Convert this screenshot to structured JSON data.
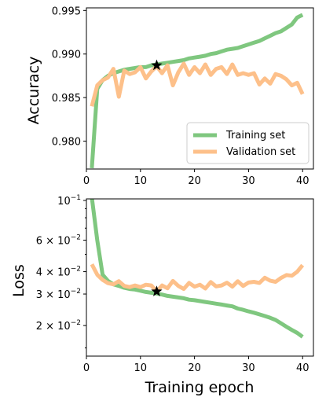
{
  "chart_data": [
    {
      "type": "line",
      "ylabel": "Accuracy",
      "xlim": [
        0,
        42
      ],
      "ylim": [
        0.9768,
        0.9953
      ],
      "y_scale": "linear",
      "xticks": [
        0,
        10,
        20,
        30,
        40
      ],
      "xtick_labels": [
        "0",
        "10",
        "20",
        "30",
        "40"
      ],
      "yticks": [
        0.98,
        0.985,
        0.99,
        0.995
      ],
      "ytick_labels": [
        "0.980",
        "0.985",
        "0.990",
        "0.995"
      ],
      "legend_position": "lower-right",
      "grid": false,
      "series": [
        {
          "name": "Training set",
          "color": "#7fc77f",
          "x": [
            1,
            2,
            3,
            4,
            5,
            6,
            7,
            8,
            9,
            10,
            11,
            12,
            13,
            14,
            15,
            16,
            17,
            18,
            19,
            20,
            21,
            22,
            23,
            24,
            25,
            26,
            27,
            28,
            29,
            30,
            31,
            32,
            33,
            34,
            35,
            36,
            37,
            38,
            39,
            40
          ],
          "values": [
            0.9769,
            0.986,
            0.987,
            0.9875,
            0.9878,
            0.988,
            0.9882,
            0.9883,
            0.9884,
            0.9885,
            0.9885,
            0.9887,
            0.9888,
            0.9889,
            0.989,
            0.9891,
            0.9892,
            0.9893,
            0.9895,
            0.9896,
            0.9897,
            0.9898,
            0.99,
            0.9901,
            0.9903,
            0.9905,
            0.9906,
            0.9907,
            0.9909,
            0.9911,
            0.9913,
            0.9915,
            0.9918,
            0.9921,
            0.9924,
            0.9926,
            0.993,
            0.9934,
            0.9942,
            0.9945
          ]
        },
        {
          "name": "Validation set",
          "color": "#fdc08a",
          "x": [
            1,
            2,
            3,
            4,
            5,
            6,
            7,
            8,
            9,
            10,
            11,
            12,
            13,
            14,
            15,
            16,
            17,
            18,
            19,
            20,
            21,
            22,
            23,
            24,
            25,
            26,
            27,
            28,
            29,
            30,
            31,
            32,
            33,
            34,
            35,
            36,
            37,
            38,
            39,
            40
          ],
          "values": [
            0.984,
            0.9864,
            0.987,
            0.9873,
            0.9883,
            0.9851,
            0.9881,
            0.9877,
            0.9879,
            0.9885,
            0.9872,
            0.988,
            0.9886,
            0.9878,
            0.9887,
            0.9864,
            0.9879,
            0.9889,
            0.9876,
            0.9885,
            0.9878,
            0.9888,
            0.9876,
            0.9883,
            0.9885,
            0.9877,
            0.9888,
            0.9876,
            0.9878,
            0.9876,
            0.9878,
            0.9865,
            0.9872,
            0.9866,
            0.9877,
            0.9875,
            0.9871,
            0.9864,
            0.9867,
            0.9854
          ]
        }
      ],
      "marker": {
        "x": 13,
        "y": 0.9887,
        "symbol": "star",
        "color": "#000000"
      }
    },
    {
      "type": "line",
      "xlabel": "Training epoch",
      "ylabel": "Loss",
      "xlim": [
        0,
        42
      ],
      "ylim": [
        0.0135,
        0.102
      ],
      "y_scale": "log",
      "xticks": [
        0,
        10,
        20,
        30,
        40
      ],
      "xtick_labels": [
        "0",
        "10",
        "20",
        "30",
        "40"
      ],
      "yticks": [
        0.02,
        0.03,
        0.04,
        0.06,
        0.1
      ],
      "ytick_labels": [
        {
          "base": "2 × 10",
          "exp": "−2"
        },
        {
          "base": "3 × 10",
          "exp": "−2"
        },
        {
          "base": "4 × 10",
          "exp": "−2"
        },
        {
          "base": "6 × 10",
          "exp": "−2"
        },
        {
          "base": "10",
          "exp": "−1"
        }
      ],
      "grid": false,
      "series": [
        {
          "name": "Training set",
          "color": "#7fc77f",
          "x": [
            1,
            2,
            3,
            4,
            5,
            6,
            7,
            8,
            9,
            10,
            11,
            12,
            13,
            14,
            15,
            16,
            17,
            18,
            19,
            20,
            21,
            22,
            23,
            24,
            25,
            26,
            27,
            28,
            29,
            30,
            31,
            32,
            33,
            34,
            35,
            36,
            37,
            38,
            39,
            40
          ],
          "values": [
            0.104,
            0.06,
            0.0385,
            0.0355,
            0.034,
            0.0333,
            0.0325,
            0.032,
            0.0318,
            0.0313,
            0.0308,
            0.0305,
            0.0302,
            0.0298,
            0.0293,
            0.029,
            0.0287,
            0.0284,
            0.0279,
            0.0277,
            0.0274,
            0.0271,
            0.0268,
            0.0265,
            0.0262,
            0.0259,
            0.0256,
            0.0249,
            0.0245,
            0.024,
            0.0236,
            0.0231,
            0.0226,
            0.0221,
            0.0215,
            0.0206,
            0.0197,
            0.0189,
            0.0182,
            0.0173
          ]
        },
        {
          "name": "Validation set",
          "color": "#fdc08a",
          "x": [
            1,
            2,
            3,
            4,
            5,
            6,
            7,
            8,
            9,
            10,
            11,
            12,
            13,
            14,
            15,
            16,
            17,
            18,
            19,
            20,
            21,
            22,
            23,
            24,
            25,
            26,
            27,
            28,
            29,
            30,
            31,
            32,
            33,
            34,
            35,
            36,
            37,
            38,
            39,
            40
          ],
          "values": [
            0.044,
            0.0385,
            0.036,
            0.0345,
            0.034,
            0.0354,
            0.0333,
            0.0328,
            0.0335,
            0.0328,
            0.0338,
            0.0335,
            0.031,
            0.0335,
            0.0323,
            0.0355,
            0.0333,
            0.032,
            0.0346,
            0.033,
            0.0338,
            0.0322,
            0.035,
            0.0331,
            0.0335,
            0.0347,
            0.033,
            0.0354,
            0.0333,
            0.0348,
            0.0351,
            0.0346,
            0.037,
            0.0356,
            0.0351,
            0.0369,
            0.0383,
            0.038,
            0.04,
            0.0435
          ]
        }
      ],
      "marker": {
        "x": 13,
        "y": 0.031,
        "symbol": "star",
        "color": "#000000"
      }
    }
  ]
}
